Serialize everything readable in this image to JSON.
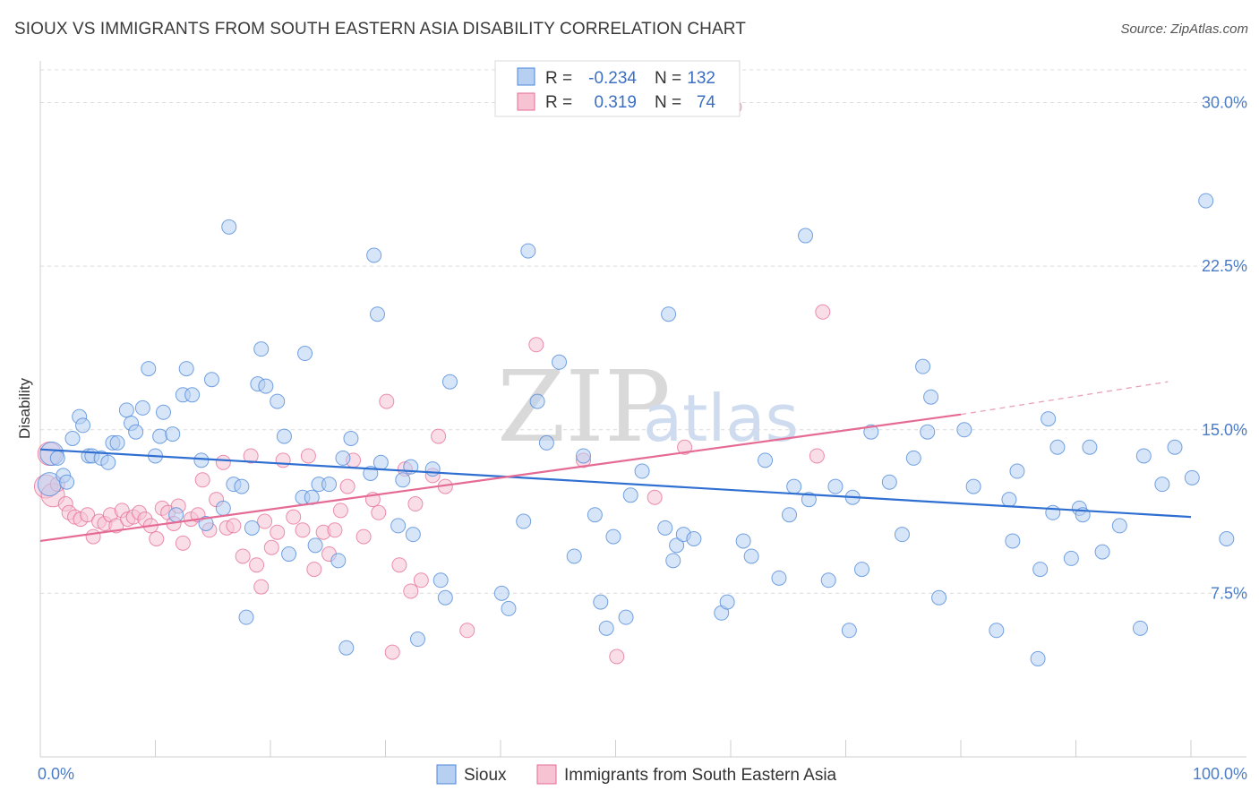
{
  "header": {
    "title": "SIOUX VS IMMIGRANTS FROM SOUTH EASTERN ASIA DISABILITY CORRELATION CHART",
    "source": "Source: ZipAtlas.com"
  },
  "watermark": {
    "zip": "ZIP",
    "atlas": "atlas"
  },
  "legend_box": {
    "r_label": "R =",
    "n_label": "N =",
    "rows": [
      {
        "series": "Sioux",
        "r": "-0.234",
        "n": "132"
      },
      {
        "series": "Immigrants from South Eastern Asia",
        "r": "0.319",
        "n": "74"
      }
    ]
  },
  "chart_data": {
    "type": "scatter",
    "title": "SIOUX VS IMMIGRANTS FROM SOUTH EASTERN ASIA DISABILITY CORRELATION CHART",
    "xlabel": "",
    "ylabel": "Disability",
    "xlim": [
      0,
      100
    ],
    "ylim": [
      0,
      31.5
    ],
    "x_tick_labels": [
      "0.0%",
      "100.0%"
    ],
    "y_ticks": [
      7.5,
      15.0,
      22.5,
      30.0
    ],
    "y_tick_labels": [
      "7.5%",
      "15.0%",
      "22.5%",
      "30.0%"
    ],
    "grid": true,
    "colors": {
      "sioux": "#4a86d8",
      "sioux_fill": "#b7d0f2",
      "immigrants": "#e56b95",
      "immigrants_fill": "#f6c3d3"
    },
    "series": [
      {
        "name": "Sioux",
        "r": -0.234,
        "n": 132,
        "trend": {
          "x0": 0,
          "y0": 14.1,
          "x1": 100,
          "y1": 11.0
        },
        "points": [
          [
            1,
            13.9
          ],
          [
            0.8,
            12.5
          ],
          [
            1.5,
            13.7
          ],
          [
            2,
            12.9
          ],
          [
            2.3,
            12.6
          ],
          [
            2.8,
            14.6
          ],
          [
            3.4,
            15.6
          ],
          [
            3.7,
            15.2
          ],
          [
            4.2,
            13.8
          ],
          [
            4.5,
            13.8
          ],
          [
            5.3,
            13.7
          ],
          [
            5.9,
            13.5
          ],
          [
            6.3,
            14.4
          ],
          [
            6.7,
            14.4
          ],
          [
            7.5,
            15.9
          ],
          [
            7.9,
            15.3
          ],
          [
            8.3,
            14.9
          ],
          [
            8.9,
            16.0
          ],
          [
            9.4,
            17.8
          ],
          [
            10,
            13.8
          ],
          [
            10.4,
            14.7
          ],
          [
            10.7,
            15.8
          ],
          [
            11.5,
            14.8
          ],
          [
            11.8,
            11.1
          ],
          [
            12.4,
            16.6
          ],
          [
            12.7,
            17.8
          ],
          [
            13.2,
            16.6
          ],
          [
            14,
            13.6
          ],
          [
            14.4,
            10.7
          ],
          [
            14.9,
            17.3
          ],
          [
            15.9,
            11.4
          ],
          [
            16.4,
            24.3
          ],
          [
            16.8,
            12.5
          ],
          [
            17.5,
            12.4
          ],
          [
            17.9,
            6.4
          ],
          [
            18.4,
            10.5
          ],
          [
            18.9,
            17.1
          ],
          [
            19.2,
            18.7
          ],
          [
            19.6,
            17.0
          ],
          [
            20.6,
            16.3
          ],
          [
            21.2,
            14.7
          ],
          [
            21.6,
            9.3
          ],
          [
            22.8,
            11.9
          ],
          [
            23,
            18.5
          ],
          [
            23.6,
            11.9
          ],
          [
            23.9,
            9.7
          ],
          [
            24.2,
            12.5
          ],
          [
            25.1,
            12.5
          ],
          [
            25.9,
            9.0
          ],
          [
            26.3,
            13.7
          ],
          [
            26.6,
            5.0
          ],
          [
            27,
            14.6
          ],
          [
            28.7,
            13.0
          ],
          [
            29,
            23.0
          ],
          [
            29.3,
            20.3
          ],
          [
            29.6,
            13.5
          ],
          [
            31.1,
            10.6
          ],
          [
            31.5,
            12.7
          ],
          [
            32.2,
            13.3
          ],
          [
            32.4,
            10.2
          ],
          [
            32.8,
            5.4
          ],
          [
            34.1,
            13.2
          ],
          [
            34.8,
            8.1
          ],
          [
            35.2,
            7.3
          ],
          [
            35.6,
            17.2
          ],
          [
            40.1,
            7.5
          ],
          [
            40.7,
            6.8
          ],
          [
            42,
            10.8
          ],
          [
            42.4,
            23.2
          ],
          [
            43.2,
            16.3
          ],
          [
            44,
            14.4
          ],
          [
            45.1,
            18.1
          ],
          [
            46.4,
            9.2
          ],
          [
            47.2,
            13.8
          ],
          [
            48.2,
            11.1
          ],
          [
            48.7,
            7.1
          ],
          [
            49.2,
            5.9
          ],
          [
            49.8,
            10.1
          ],
          [
            50.9,
            6.4
          ],
          [
            51.3,
            12.0
          ],
          [
            52.3,
            13.1
          ],
          [
            54.3,
            10.5
          ],
          [
            54.6,
            20.3
          ],
          [
            55,
            9.0
          ],
          [
            55.3,
            9.7
          ],
          [
            55.9,
            10.2
          ],
          [
            56.8,
            10.0
          ],
          [
            59.2,
            6.6
          ],
          [
            59.7,
            7.1
          ],
          [
            61.1,
            9.9
          ],
          [
            61.8,
            9.2
          ],
          [
            63,
            13.6
          ],
          [
            64.2,
            8.2
          ],
          [
            65.1,
            11.1
          ],
          [
            65.5,
            12.4
          ],
          [
            66.5,
            23.9
          ],
          [
            66.8,
            11.8
          ],
          [
            68.5,
            8.1
          ],
          [
            69.1,
            12.4
          ],
          [
            70.3,
            5.8
          ],
          [
            70.6,
            11.9
          ],
          [
            71.4,
            8.6
          ],
          [
            72.2,
            14.9
          ],
          [
            73.8,
            12.6
          ],
          [
            74.9,
            10.2
          ],
          [
            75.9,
            13.7
          ],
          [
            76.7,
            17.9
          ],
          [
            77.1,
            14.9
          ],
          [
            77.4,
            16.5
          ],
          [
            78.1,
            7.3
          ],
          [
            80.3,
            15.0
          ],
          [
            81.1,
            12.4
          ],
          [
            83.1,
            5.8
          ],
          [
            84.2,
            11.8
          ],
          [
            84.5,
            9.9
          ],
          [
            84.9,
            13.1
          ],
          [
            86.7,
            4.5
          ],
          [
            86.9,
            8.6
          ],
          [
            87.6,
            15.5
          ],
          [
            88,
            11.2
          ],
          [
            88.4,
            14.2
          ],
          [
            89.6,
            9.1
          ],
          [
            90.3,
            11.4
          ],
          [
            90.6,
            11.1
          ],
          [
            91.2,
            14.2
          ],
          [
            92.3,
            9.4
          ],
          [
            93.8,
            10.6
          ],
          [
            95.6,
            5.9
          ],
          [
            95.9,
            13.8
          ],
          [
            97.5,
            12.5
          ],
          [
            98.6,
            14.2
          ],
          [
            100.1,
            12.8
          ],
          [
            101.3,
            25.5
          ],
          [
            103.1,
            10.0
          ]
        ]
      },
      {
        "name": "Immigrants from South Eastern Asia",
        "r": 0.319,
        "n": 74,
        "trend": {
          "x0": 0,
          "y0": 9.9,
          "x1": 80,
          "y1": 15.7,
          "dash_to": {
            "x": 98,
            "y": 17.2
          }
        },
        "points": [
          [
            0.5,
            12.4
          ],
          [
            0.8,
            13.9
          ],
          [
            1.1,
            12.0
          ],
          [
            1.5,
            12.5
          ],
          [
            2.2,
            11.6
          ],
          [
            2.5,
            11.2
          ],
          [
            3,
            11.0
          ],
          [
            3.5,
            10.9
          ],
          [
            4.1,
            11.1
          ],
          [
            4.6,
            10.1
          ],
          [
            5.1,
            10.8
          ],
          [
            5.6,
            10.7
          ],
          [
            6.1,
            11.1
          ],
          [
            6.6,
            10.6
          ],
          [
            7.1,
            11.3
          ],
          [
            7.6,
            10.9
          ],
          [
            8.1,
            11.0
          ],
          [
            8.6,
            11.2
          ],
          [
            9.1,
            10.9
          ],
          [
            9.6,
            10.6
          ],
          [
            10.1,
            10.0
          ],
          [
            10.6,
            11.4
          ],
          [
            11.1,
            11.2
          ],
          [
            11.6,
            10.7
          ],
          [
            12,
            11.5
          ],
          [
            12.4,
            9.8
          ],
          [
            13.1,
            10.9
          ],
          [
            13.7,
            11.1
          ],
          [
            14.1,
            12.7
          ],
          [
            14.7,
            10.4
          ],
          [
            15.3,
            11.8
          ],
          [
            15.9,
            13.5
          ],
          [
            16.2,
            10.5
          ],
          [
            16.8,
            10.6
          ],
          [
            17.6,
            9.2
          ],
          [
            18.3,
            13.8
          ],
          [
            18.8,
            8.8
          ],
          [
            19.2,
            7.8
          ],
          [
            19.5,
            10.8
          ],
          [
            20.1,
            9.6
          ],
          [
            20.6,
            10.3
          ],
          [
            21.1,
            13.6
          ],
          [
            22,
            11.0
          ],
          [
            22.8,
            10.4
          ],
          [
            23.3,
            13.8
          ],
          [
            23.8,
            8.6
          ],
          [
            24.6,
            10.3
          ],
          [
            25.1,
            9.3
          ],
          [
            25.6,
            10.4
          ],
          [
            26.1,
            11.3
          ],
          [
            26.7,
            12.4
          ],
          [
            27.2,
            13.6
          ],
          [
            28.1,
            10.1
          ],
          [
            28.9,
            11.8
          ],
          [
            29.4,
            11.2
          ],
          [
            30.1,
            16.3
          ],
          [
            30.6,
            4.8
          ],
          [
            31.2,
            8.8
          ],
          [
            31.7,
            13.2
          ],
          [
            32.2,
            7.6
          ],
          [
            32.6,
            11.6
          ],
          [
            33.1,
            8.1
          ],
          [
            34.1,
            12.9
          ],
          [
            34.6,
            14.7
          ],
          [
            35.2,
            12.4
          ],
          [
            37.1,
            5.8
          ],
          [
            43.1,
            18.9
          ],
          [
            47.2,
            13.6
          ],
          [
            50.1,
            4.6
          ],
          [
            60.3,
            29.8
          ],
          [
            67.5,
            13.8
          ],
          [
            68,
            20.4
          ],
          [
            56,
            14.2
          ],
          [
            53.4,
            11.9
          ]
        ]
      }
    ]
  },
  "bottom_legend": [
    {
      "label": "Sioux"
    },
    {
      "label": "Immigrants from South Eastern Asia"
    }
  ]
}
